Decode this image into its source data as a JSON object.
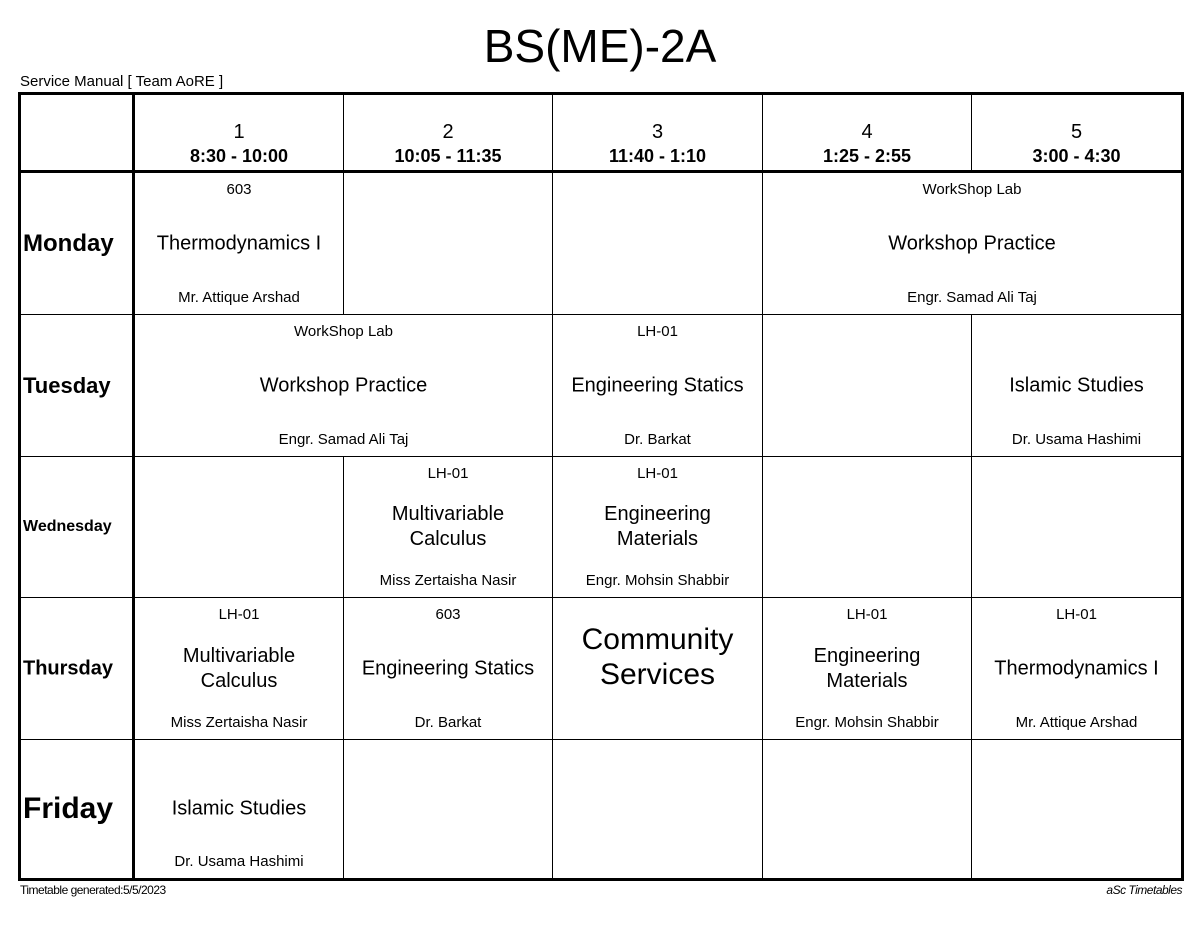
{
  "title": "BS(ME)-2A",
  "subtitle": "Service Manual [ Team AoRE ]",
  "footer": {
    "generated": "Timetable generated:5/5/2023",
    "brand": "aSc Timetables"
  },
  "periods": [
    {
      "number": "1",
      "time": "8:30 - 10:00"
    },
    {
      "number": "2",
      "time": "10:05 - 11:35"
    },
    {
      "number": "3",
      "time": "11:40 - 1:10"
    },
    {
      "number": "4",
      "time": "1:25 - 2:55"
    },
    {
      "number": "5",
      "time": "3:00 - 4:30"
    }
  ],
  "days": [
    {
      "name": "Monday",
      "cells": [
        {
          "period": 1,
          "span": 1,
          "room": "603",
          "subject": "Thermodynamics I",
          "teacher": "Mr. Attique Arshad"
        },
        {
          "period": 2,
          "span": 1
        },
        {
          "period": 3,
          "span": 1
        },
        {
          "period": 4,
          "span": 2,
          "room": "WorkShop Lab",
          "subject": "Workshop Practice",
          "teacher": "Engr. Samad Ali Taj"
        }
      ]
    },
    {
      "name": "Tuesday",
      "cells": [
        {
          "period": 1,
          "span": 2,
          "room": "WorkShop Lab",
          "subject": "Workshop Practice",
          "teacher": "Engr. Samad Ali Taj"
        },
        {
          "period": 3,
          "span": 1,
          "room": "LH-01",
          "subject": "Engineering Statics",
          "teacher": "Dr. Barkat"
        },
        {
          "period": 4,
          "span": 1
        },
        {
          "period": 5,
          "span": 1,
          "subject": "Islamic Studies",
          "teacher": "Dr. Usama Hashimi"
        }
      ]
    },
    {
      "name": "Wednesday",
      "cells": [
        {
          "period": 1,
          "span": 1
        },
        {
          "period": 2,
          "span": 1,
          "room": "LH-01",
          "subject": "Multivariable\nCalculus",
          "teacher": "Miss Zertaisha Nasir"
        },
        {
          "period": 3,
          "span": 1,
          "room": "LH-01",
          "subject": "Engineering\nMaterials",
          "teacher": "Engr. Mohsin Shabbir"
        },
        {
          "period": 4,
          "span": 1
        },
        {
          "period": 5,
          "span": 1
        }
      ]
    },
    {
      "name": "Thursday",
      "cells": [
        {
          "period": 1,
          "span": 1,
          "room": "LH-01",
          "subject": "Multivariable\nCalculus",
          "teacher": "Miss Zertaisha Nasir"
        },
        {
          "period": 2,
          "span": 1,
          "room": "603",
          "subject": "Engineering Statics",
          "teacher": "Dr. Barkat"
        },
        {
          "period": 3,
          "span": 1,
          "subject": "Community\nServices",
          "big": true
        },
        {
          "period": 4,
          "span": 1,
          "room": "LH-01",
          "subject": "Engineering\nMaterials",
          "teacher": "Engr. Mohsin Shabbir"
        },
        {
          "period": 5,
          "span": 1,
          "room": "LH-01",
          "subject": "Thermodynamics I",
          "teacher": "Mr. Attique Arshad"
        }
      ]
    },
    {
      "name": "Friday",
      "cells": [
        {
          "period": 1,
          "span": 1,
          "subject": "Islamic Studies",
          "teacher": "Dr. Usama Hashimi"
        },
        {
          "period": 2,
          "span": 1
        },
        {
          "period": 3,
          "span": 1
        },
        {
          "period": 4,
          "span": 1
        },
        {
          "period": 5,
          "span": 1
        }
      ]
    }
  ]
}
